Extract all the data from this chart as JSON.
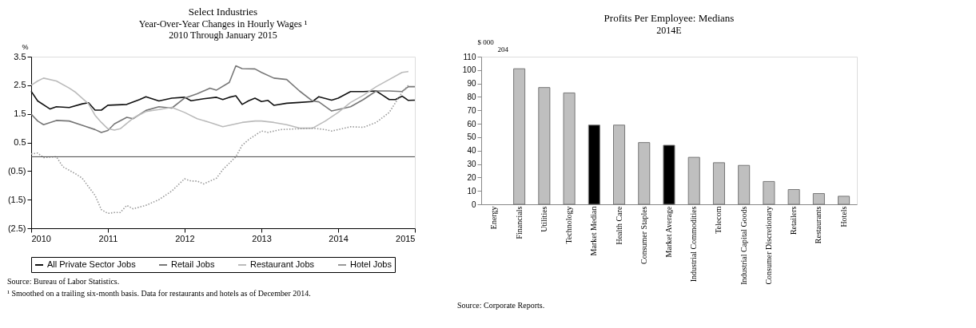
{
  "chart_data": [
    {
      "type": "line",
      "title": "Select Industries",
      "subtitle": "Year-Over-Year Changes in Hourly Wages ¹\n2010 Through January 2015",
      "ylabel": "%",
      "xlim": [
        "2010",
        "2015"
      ],
      "xticks": [
        "2010",
        "2011",
        "2012",
        "2013",
        "2014",
        "2015"
      ],
      "ylim": [
        -2.5,
        3.5
      ],
      "yticks": [
        {
          "value": -2.5,
          "label": "(2.5)"
        },
        {
          "value": -1.5,
          "label": "(1.5)"
        },
        {
          "value": -0.5,
          "label": "(0.5)"
        },
        0.5,
        1.5,
        2.5,
        3.5
      ],
      "grid": false,
      "legend": "bottom",
      "marker": "none",
      "ref_lines": [
        {
          "axis": "y",
          "value": 0,
          "color": "#444444"
        }
      ],
      "series": [
        {
          "name": "All Private Sector Jobs",
          "color": "#111111",
          "line_style": "solid",
          "x": [
            "2010-01",
            "2010-02",
            "2010-04",
            "2010-05",
            "2010-07",
            "2010-09",
            "2010-10",
            "2010-11",
            "2010-12",
            "2011-01",
            "2011-04",
            "2011-06",
            "2011-07",
            "2011-09",
            "2011-11",
            "2012-01",
            "2012-02",
            "2012-04",
            "2012-06",
            "2012-07",
            "2012-08",
            "2012-09",
            "2012-10",
            "2012-11",
            "2012-12",
            "2013-01",
            "2013-02",
            "2013-03",
            "2013-05",
            "2013-07",
            "2013-09",
            "2013-10",
            "2013-12",
            "2014-01",
            "2014-03",
            "2014-05",
            "2014-07",
            "2014-08",
            "2014-09",
            "2014-10",
            "2014-11",
            "2014-12",
            "2015-01"
          ],
          "values": [
            2.29,
            1.95,
            1.67,
            1.75,
            1.72,
            1.85,
            1.89,
            1.63,
            1.63,
            1.8,
            1.83,
            2.0,
            2.1,
            1.95,
            2.05,
            2.08,
            1.96,
            2.03,
            2.08,
            2.0,
            2.08,
            2.13,
            1.83,
            1.96,
            2.05,
            1.93,
            1.97,
            1.8,
            1.87,
            1.9,
            1.93,
            2.1,
            1.98,
            2.05,
            2.28,
            2.28,
            2.3,
            2.15,
            2.0,
            2.0,
            2.12,
            1.97,
            1.98
          ]
        },
        {
          "name": "Retail Jobs",
          "color": "#777777",
          "line_style": "solid",
          "x": [
            "2010-01",
            "2010-02",
            "2010-03",
            "2010-05",
            "2010-07",
            "2010-09",
            "2010-11",
            "2010-12",
            "2011-01",
            "2011-02",
            "2011-04",
            "2011-05",
            "2011-07",
            "2011-09",
            "2011-11",
            "2012-01",
            "2012-03",
            "2012-05",
            "2012-06",
            "2012-08",
            "2012-09",
            "2012-10",
            "2012-12",
            "2013-01",
            "2013-03",
            "2013-05",
            "2013-07",
            "2013-09",
            "2013-10",
            "2013-12",
            "2014-01",
            "2014-03",
            "2014-05",
            "2014-07",
            "2014-09",
            "2014-11",
            "2014-12",
            "2015-01"
          ],
          "values": [
            1.49,
            1.25,
            1.12,
            1.27,
            1.25,
            1.1,
            0.95,
            0.85,
            0.92,
            1.15,
            1.38,
            1.33,
            1.62,
            1.75,
            1.7,
            2.05,
            2.2,
            2.4,
            2.33,
            2.6,
            3.18,
            3.08,
            3.07,
            2.95,
            2.75,
            2.7,
            2.3,
            1.95,
            1.92,
            1.6,
            1.65,
            1.75,
            2.0,
            2.3,
            2.3,
            2.28,
            2.45,
            2.45
          ]
        },
        {
          "name": "Restaurant Jobs",
          "color": "#bbbbbb",
          "line_style": "solid",
          "x": [
            "2010-01",
            "2010-02",
            "2010-03",
            "2010-05",
            "2010-07",
            "2010-08",
            "2010-10",
            "2010-11",
            "2010-12",
            "2011-01",
            "2011-02",
            "2011-03",
            "2011-05",
            "2011-07",
            "2011-09",
            "2011-11",
            "2012-01",
            "2012-03",
            "2012-05",
            "2012-07",
            "2012-08",
            "2012-10",
            "2012-12",
            "2013-01",
            "2013-03",
            "2013-05",
            "2013-07",
            "2013-09",
            "2013-11",
            "2014-01",
            "2014-03",
            "2014-05",
            "2014-07",
            "2014-09",
            "2014-11",
            "2014-12"
          ],
          "values": [
            2.5,
            2.65,
            2.75,
            2.65,
            2.4,
            2.25,
            1.85,
            1.45,
            1.2,
            0.98,
            0.93,
            0.98,
            1.35,
            1.58,
            1.65,
            1.73,
            1.55,
            1.33,
            1.2,
            1.05,
            1.1,
            1.2,
            1.25,
            1.25,
            1.2,
            1.12,
            1.0,
            1.0,
            1.25,
            1.55,
            1.9,
            2.15,
            2.45,
            2.7,
            2.95,
            2.98
          ]
        },
        {
          "name": "Hotel Jobs",
          "color": "#999999",
          "line_style": "dotted",
          "x": [
            "2010-01",
            "2010-02",
            "2010-03",
            "2010-05",
            "2010-06",
            "2010-08",
            "2010-09",
            "2010-10",
            "2010-11",
            "2010-12",
            "2011-01",
            "2011-02",
            "2011-03",
            "2011-04",
            "2011-05",
            "2011-07",
            "2011-09",
            "2011-11",
            "2012-01",
            "2012-02",
            "2012-03",
            "2012-04",
            "2012-06",
            "2012-07",
            "2012-09",
            "2012-10",
            "2012-11",
            "2013-01",
            "2013-02",
            "2013-04",
            "2013-07",
            "2013-09",
            "2013-11",
            "2013-12",
            "2014-01",
            "2014-03",
            "2014-05",
            "2014-07",
            "2014-09",
            "2014-11",
            "2014-12"
          ],
          "values": [
            0.1,
            0.13,
            -0.03,
            0.0,
            -0.35,
            -0.6,
            -0.75,
            -1.05,
            -1.35,
            -1.85,
            -1.98,
            -1.95,
            -1.95,
            -1.7,
            -1.82,
            -1.7,
            -1.5,
            -1.2,
            -0.77,
            -0.85,
            -0.85,
            -0.95,
            -0.75,
            -0.45,
            0.0,
            0.4,
            0.6,
            0.9,
            0.85,
            0.95,
            0.98,
            1.0,
            0.95,
            0.9,
            0.95,
            1.05,
            1.03,
            1.2,
            1.55,
            2.25,
            2.5
          ]
        }
      ],
      "annotations": [
        "Source: Bureau of Labor Statistics.",
        "¹ Smoothed on a trailing six-month basis.  Data for restaurants and hotels as of December 2014."
      ]
    },
    {
      "type": "bar",
      "title": "Profits Per Employee: Medians",
      "subtitle": "2014E",
      "ylabel": "$ 000",
      "categories": [
        "Energy",
        "Financials",
        "Utilities",
        "Technology",
        "Market Median",
        "Health Care",
        "Consumer Staples",
        "Market Average",
        "Industrial Commodities",
        "Telecom",
        "Industrial Capital Goods",
        "Consumer Discretionary",
        "Retailers",
        "Restaurants",
        "Hotels"
      ],
      "values": [
        null,
        101,
        87,
        83,
        59,
        59,
        46,
        44,
        35,
        31,
        29,
        17,
        11,
        8,
        6
      ],
      "colors": [
        "#bfbfbf",
        "#bfbfbf",
        "#bfbfbf",
        "#bfbfbf",
        "#000000",
        "#bfbfbf",
        "#bfbfbf",
        "#000000",
        "#bfbfbf",
        "#bfbfbf",
        "#bfbfbf",
        "#bfbfbf",
        "#bfbfbf",
        "#bfbfbf",
        "#bfbfbf"
      ],
      "ylim": [
        0,
        110
      ],
      "yticks": [
        0,
        10,
        20,
        30,
        40,
        50,
        60,
        70,
        80,
        90,
        100,
        110
      ],
      "grid": false,
      "legend": false,
      "annotations": [
        "204",
        "Source: Corporate Reports."
      ]
    }
  ]
}
